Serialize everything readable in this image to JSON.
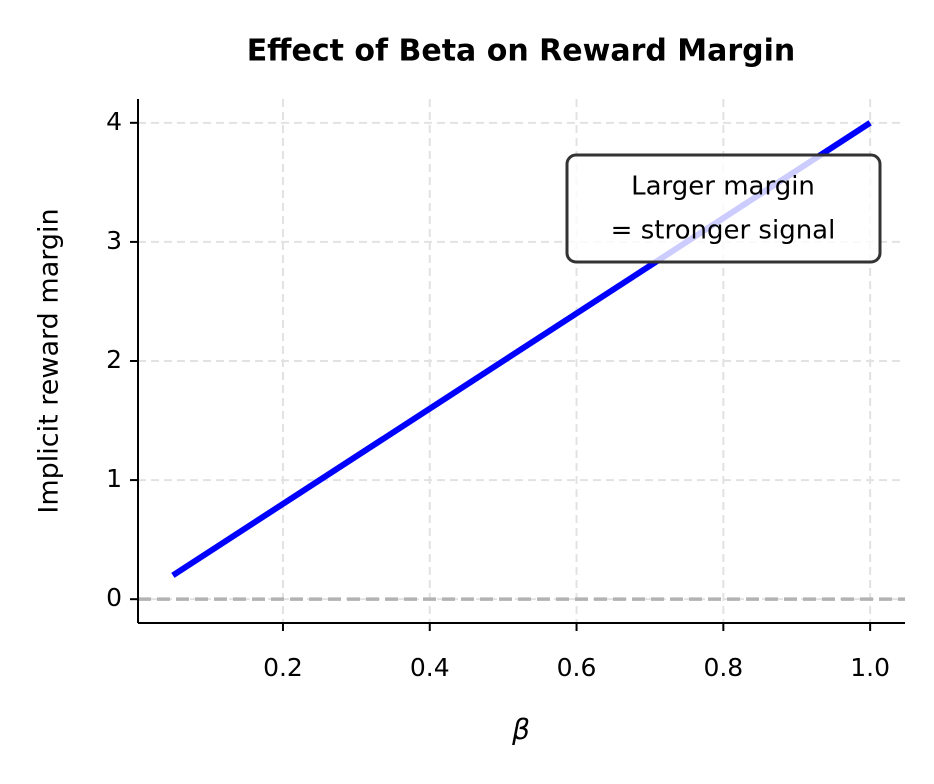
{
  "chart_data": {
    "type": "line",
    "title": "Effect of Beta on Reward Margin",
    "xlabel": "β",
    "ylabel": "Implicit reward margin",
    "x": [
      0.05,
      1.0
    ],
    "series": [
      {
        "color": "#0000ff",
        "values": [
          0.2,
          4.0
        ]
      }
    ],
    "hline": 0,
    "annotation": [
      "Larger margin",
      "= stronger signal"
    ],
    "xlim": [
      0.0025,
      1.0475
    ],
    "ylim": [
      -0.2,
      4.2
    ],
    "xticks": [
      0.2,
      0.4,
      0.6,
      0.8,
      {
        "value": 1.0,
        "label": "1.0"
      }
    ],
    "yticks": [
      0,
      1,
      2,
      3,
      4
    ],
    "grid": true
  }
}
